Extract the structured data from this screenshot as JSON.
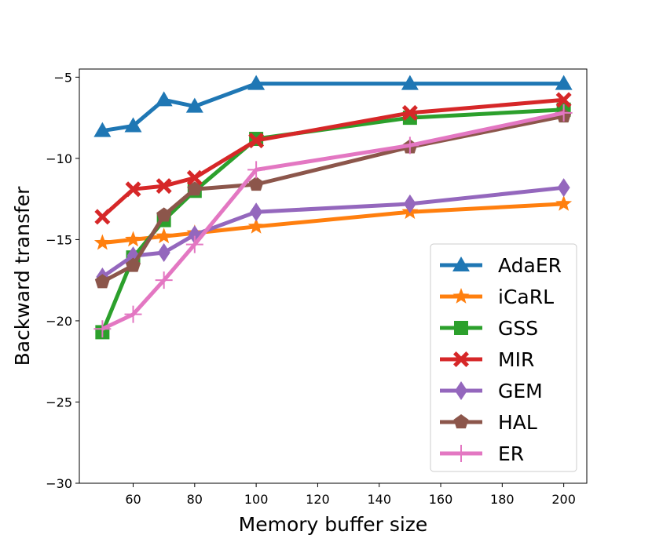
{
  "chart_data": {
    "type": "line",
    "title": "",
    "xlabel": "Memory buffer size",
    "ylabel": "Backward transfer",
    "xlim": [
      42.5,
      207.5
    ],
    "ylim": [
      -30,
      -4.5
    ],
    "xticks": [
      60,
      80,
      100,
      120,
      140,
      160,
      180,
      200
    ],
    "xtick_labels": [
      "60",
      "80",
      "100",
      "120",
      "140",
      "160",
      "180",
      "200"
    ],
    "yticks": [
      -30,
      -25,
      -20,
      -15,
      -10,
      -5
    ],
    "ytick_labels": [
      "−30",
      "−25",
      "−20",
      "−15",
      "−10",
      "−5"
    ],
    "grid": false,
    "legend_position": "lower-right",
    "series": [
      {
        "name": "AdaER",
        "color": "#1f77b4",
        "marker": "triangle",
        "x": [
          50,
          60,
          70,
          80,
          100,
          150,
          200
        ],
        "values": [
          -8.3,
          -8.0,
          -6.4,
          -6.8,
          -5.4,
          -5.4,
          -5.4
        ]
      },
      {
        "name": "iCaRL",
        "color": "#ff7f0e",
        "marker": "star",
        "x": [
          50,
          60,
          70,
          80,
          100,
          150,
          200
        ],
        "values": [
          -15.2,
          -15.0,
          -14.8,
          -14.6,
          -14.2,
          -13.3,
          -12.8
        ]
      },
      {
        "name": "GSS",
        "color": "#2ca02c",
        "marker": "square",
        "x": [
          50,
          60,
          70,
          80,
          100,
          150,
          200
        ],
        "values": [
          -20.7,
          -16.1,
          -13.8,
          -12.0,
          -8.8,
          -7.5,
          -7.0
        ]
      },
      {
        "name": "MIR",
        "color": "#d62728",
        "marker": "x",
        "x": [
          50,
          60,
          70,
          80,
          100,
          150,
          200
        ],
        "values": [
          -13.6,
          -11.9,
          -11.7,
          -11.2,
          -8.9,
          -7.2,
          -6.4
        ]
      },
      {
        "name": "GEM",
        "color": "#9467bd",
        "marker": "diamond",
        "x": [
          50,
          60,
          70,
          80,
          100,
          150,
          200
        ],
        "values": [
          -17.3,
          -16.0,
          -15.8,
          -14.7,
          -13.3,
          -12.8,
          -11.8
        ]
      },
      {
        "name": "HAL",
        "color": "#8c564b",
        "marker": "pentagon",
        "x": [
          50,
          60,
          70,
          80,
          100,
          150,
          200
        ],
        "values": [
          -17.6,
          -16.6,
          -13.5,
          -11.9,
          -11.6,
          -9.3,
          -7.4
        ]
      },
      {
        "name": "ER",
        "color": "#e377c2",
        "marker": "plus",
        "x": [
          50,
          60,
          70,
          80,
          100,
          150,
          200
        ],
        "values": [
          -20.5,
          -19.6,
          -17.5,
          -15.3,
          -10.7,
          -9.2,
          -7.2
        ]
      }
    ]
  }
}
